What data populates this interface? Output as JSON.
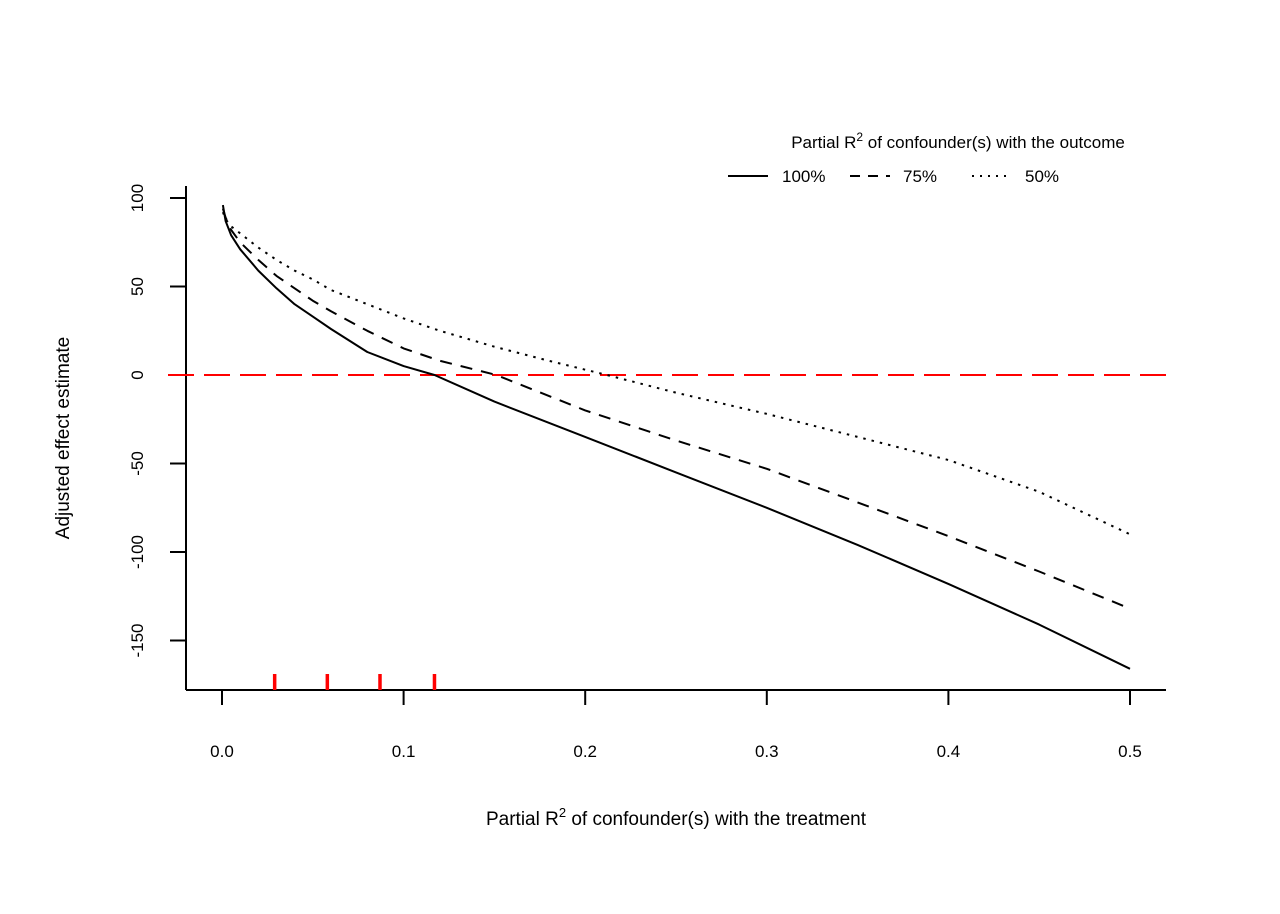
{
  "chart_data": {
    "type": "line",
    "title": "",
    "xlabel": {
      "prefix": "Partial R",
      "sup": "2",
      "suffix": " of confounder(s) with the treatment"
    },
    "ylabel": "Adjusted effect estimate",
    "xlim": [
      -0.02,
      0.52
    ],
    "ylim": [
      -176,
      107
    ],
    "x_ticks": [
      0.0,
      0.1,
      0.2,
      0.3,
      0.4,
      0.5
    ],
    "x_tick_labels": [
      "0.0",
      "0.1",
      "0.2",
      "0.3",
      "0.4",
      "0.5"
    ],
    "y_ticks": [
      100,
      50,
      0,
      -50,
      -100,
      -150
    ],
    "y_tick_labels": [
      "100",
      "50",
      "0",
      "-50",
      "-100",
      "-150"
    ],
    "legend": {
      "title": {
        "prefix": "Partial R",
        "sup": "2",
        "suffix": " of confounder(s) with the outcome"
      },
      "position": "top-right",
      "entries": [
        "100%",
        "75%",
        "50%"
      ]
    },
    "series": [
      {
        "name": "100%",
        "style": "solid",
        "x": [
          0.0005,
          0.002,
          0.005,
          0.01,
          0.02,
          0.03,
          0.04,
          0.05,
          0.06,
          0.08,
          0.1,
          0.117,
          0.15,
          0.2,
          0.25,
          0.3,
          0.35,
          0.4,
          0.45,
          0.5
        ],
        "values": [
          96,
          87,
          79,
          71,
          59,
          49,
          40,
          33,
          26,
          13,
          5,
          0,
          -15,
          -35,
          -55,
          -75,
          -96,
          -118,
          -141,
          -166
        ]
      },
      {
        "name": "75%",
        "style": "dashed",
        "x": [
          0.0005,
          0.002,
          0.005,
          0.01,
          0.02,
          0.03,
          0.04,
          0.05,
          0.06,
          0.08,
          0.1,
          0.12,
          0.151,
          0.2,
          0.25,
          0.3,
          0.35,
          0.4,
          0.45,
          0.5
        ],
        "values": [
          94,
          89,
          82,
          75,
          65,
          56,
          49,
          42,
          36,
          25,
          15,
          8,
          0,
          -20,
          -37,
          -53,
          -72,
          -91,
          -111,
          -132
        ]
      },
      {
        "name": "50%",
        "style": "dotted",
        "x": [
          0.0005,
          0.002,
          0.005,
          0.01,
          0.02,
          0.03,
          0.04,
          0.05,
          0.06,
          0.08,
          0.1,
          0.12,
          0.15,
          0.18,
          0.212,
          0.25,
          0.3,
          0.35,
          0.4,
          0.45,
          0.5
        ],
        "values": [
          92,
          88,
          84,
          80,
          72,
          65,
          59,
          54,
          48,
          40,
          32,
          25,
          16,
          8,
          0,
          -10,
          -22,
          -35,
          -48,
          -66,
          -90
        ]
      }
    ],
    "reference_line": {
      "y": 0,
      "color": "#ff0000",
      "style": "dashed"
    },
    "rug": {
      "x": [
        0.029,
        0.058,
        0.087,
        0.117
      ],
      "color": "#ff0000"
    },
    "colors": {
      "axis": "#000000",
      "series": "#000000",
      "reference": "#ff0000"
    }
  }
}
